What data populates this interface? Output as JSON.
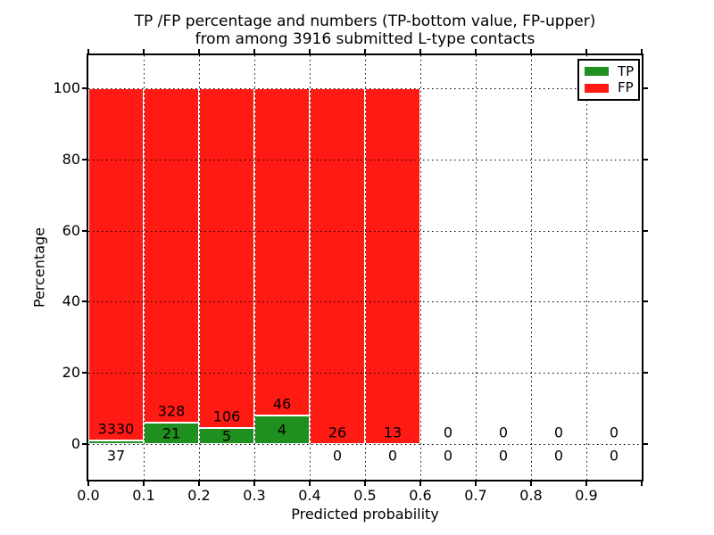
{
  "figure": {
    "title_line1": "TP /FP percentage and numbers (TP-bottom value, FP-upper)",
    "title_line2": "from among 3916 submitted L-type contacts",
    "xlabel": "Predicted probability",
    "ylabel": "Percentage"
  },
  "chart_data": {
    "type": "bar",
    "stacked": true,
    "units": "percent of bin total",
    "title": "TP /FP percentage and numbers (TP-bottom value, FP-upper) from among 3916 submitted L-type contacts",
    "xlabel": "Predicted probability",
    "ylabel": "Percentage",
    "total_contacts": 3916,
    "bin_edges": [
      0.0,
      0.1,
      0.2,
      0.3,
      0.4,
      0.5,
      0.6,
      0.7,
      0.8,
      0.9,
      1.0
    ],
    "bin_centers": [
      0.05,
      0.15,
      0.25,
      0.35,
      0.45,
      0.55,
      0.65,
      0.75,
      0.85,
      0.95
    ],
    "series": [
      {
        "name": "TP",
        "color": "#1f8f1f",
        "counts": [
          37,
          21,
          5,
          4,
          0,
          0,
          0,
          0,
          0,
          0
        ],
        "pct": [
          1.1,
          6.0,
          4.5,
          8.0,
          0,
          0,
          0,
          0,
          0,
          0
        ]
      },
      {
        "name": "FP",
        "color": "#ff1a14",
        "counts": [
          3330,
          328,
          106,
          46,
          26,
          13,
          0,
          0,
          0,
          0
        ],
        "pct": [
          98.9,
          94.0,
          95.5,
          92.0,
          100,
          100,
          0,
          0,
          0,
          0
        ]
      }
    ],
    "annotations": {
      "fp_labels": [
        "3330",
        "328",
        "106",
        "46",
        "26",
        "13",
        "0",
        "0",
        "0",
        "0"
      ],
      "tp_labels": [
        "37",
        "21",
        "5",
        "4",
        "0",
        "0",
        "0",
        "0",
        "0",
        "0"
      ]
    },
    "xticks": [
      "0.0",
      "0.1",
      "0.2",
      "0.3",
      "0.4",
      "0.5",
      "0.6",
      "0.7",
      "0.8",
      "0.9"
    ],
    "yticks": [
      "0",
      "20",
      "40",
      "60",
      "80",
      "100"
    ],
    "xlim": [
      0.0,
      1.0
    ],
    "ylim": [
      -10,
      109.3
    ],
    "grid": "dotted",
    "legend": {
      "position": "upper right",
      "entries": [
        {
          "label": "TP",
          "color": "#1f8f1f"
        },
        {
          "label": "FP",
          "color": "#ff1a14"
        }
      ]
    }
  }
}
